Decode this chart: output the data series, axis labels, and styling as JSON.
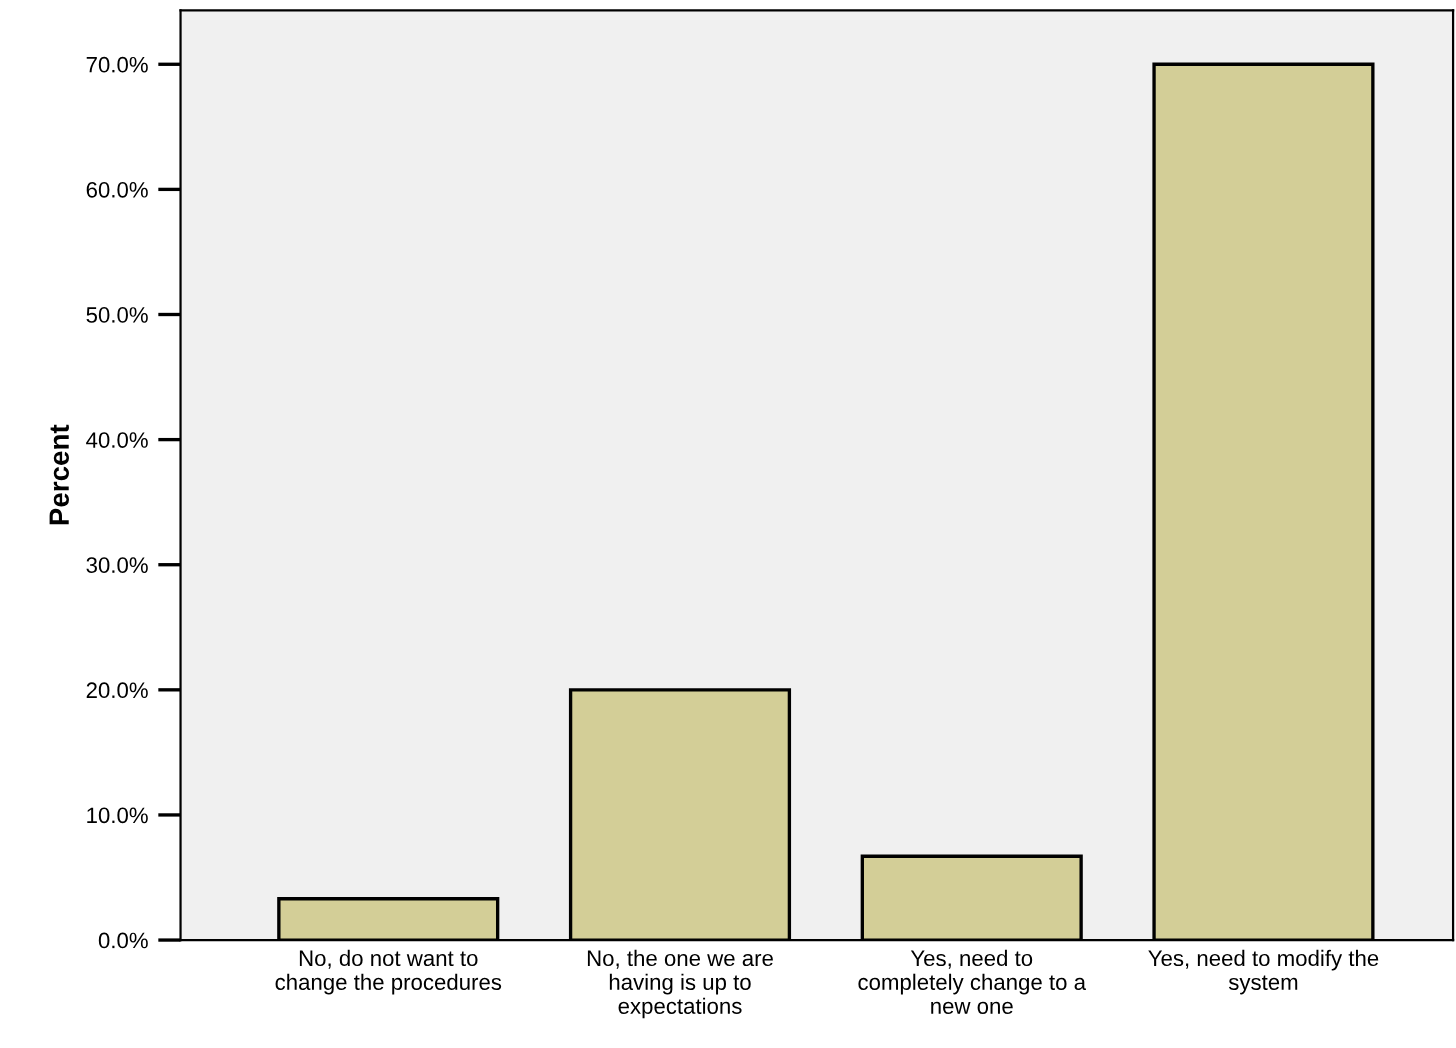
{
  "chart_data": {
    "type": "bar",
    "ylabel": "Percent",
    "categories": [
      "No, do not want to\nchange the procedures",
      "No, the one we are\nhaving is up to\nexpectations",
      "Yes, need to\ncompletely change to a\nnew one",
      "Yes, need to modify the\nsystem"
    ],
    "values": [
      3.3,
      20.0,
      6.7,
      70.0
    ],
    "color": "#d3ce97",
    "ylim": [
      0,
      74.3
    ],
    "yticks": [
      {
        "value": 0,
        "label": "0.0%"
      },
      {
        "value": 10,
        "label": "10.0%"
      },
      {
        "value": 20,
        "label": "20.0%"
      },
      {
        "value": 30,
        "label": "30.0%"
      },
      {
        "value": 40,
        "label": "40.0%"
      },
      {
        "value": 50,
        "label": "50.0%"
      },
      {
        "value": 60,
        "label": "60.0%"
      },
      {
        "value": 70,
        "label": "70.0%"
      }
    ],
    "grid": false
  }
}
